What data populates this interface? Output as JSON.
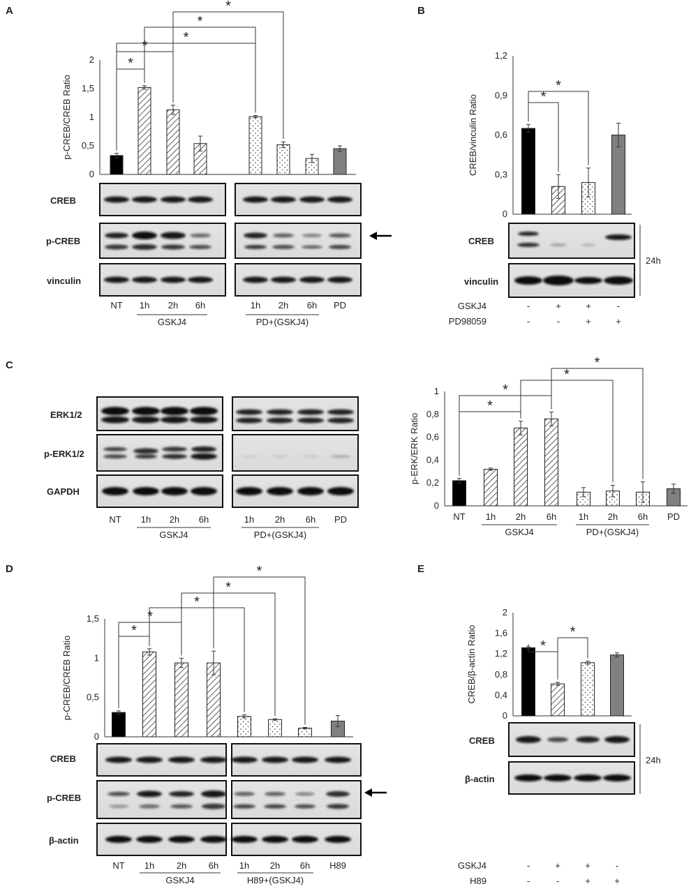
{
  "panel_letters": [
    "A",
    "B",
    "C",
    "D",
    "E"
  ],
  "chart_data": [
    {
      "id": "A",
      "type": "bar",
      "ylabel": "p-CREB/CREB Ratio",
      "ylim": [
        0,
        2
      ],
      "yticks": [
        "0",
        "0,5",
        "1",
        "1,5",
        "2"
      ],
      "categories": [
        "NT",
        "1h",
        "2h",
        "6h",
        "1h",
        "2h",
        "6h",
        "PD"
      ],
      "values": [
        0.33,
        1.52,
        1.13,
        0.54,
        1.01,
        0.52,
        0.28,
        0.45
      ],
      "errors": [
        0.04,
        0.03,
        0.08,
        0.13,
        0.02,
        0.05,
        0.07,
        0.05
      ],
      "groups": [
        "GSKJ4",
        "PD+(GSKJ4)"
      ],
      "blots": [
        "CREB",
        "p-CREB",
        "vinculin"
      ],
      "significance": "*"
    },
    {
      "id": "B",
      "type": "bar",
      "ylabel": "CREB/vinculin Ratio",
      "ylim": [
        0,
        1.2
      ],
      "yticks": [
        "0",
        "0,3",
        "0,6",
        "0,9",
        "1,2"
      ],
      "values": [
        0.65,
        0.21,
        0.24,
        0.6
      ],
      "errors": [
        0.03,
        0.09,
        0.11,
        0.09
      ],
      "blots": [
        "CREB",
        "vinculin"
      ],
      "time": "24h",
      "treatments": [
        {
          "name": "GSKJ4",
          "marks": [
            "-",
            "+",
            "+",
            "-"
          ]
        },
        {
          "name": "PD98059",
          "marks": [
            "-",
            "-",
            "+",
            "+"
          ]
        }
      ],
      "significance": "*"
    },
    {
      "id": "C",
      "type": "bar",
      "ylabel": "p-ERK/ERK Ratio",
      "ylim": [
        0,
        1
      ],
      "yticks": [
        "0",
        "0,2",
        "0,4",
        "0,6",
        "0,8",
        "1"
      ],
      "categories": [
        "NT",
        "1h",
        "2h",
        "6h",
        "1h",
        "2h",
        "6h",
        "PD"
      ],
      "values": [
        0.22,
        0.32,
        0.68,
        0.76,
        0.12,
        0.13,
        0.12,
        0.15
      ],
      "errors": [
        0.02,
        0.01,
        0.06,
        0.06,
        0.04,
        0.05,
        0.09,
        0.04
      ],
      "groups": [
        "GSKJ4",
        "PD+(GSKJ4)"
      ],
      "blots": [
        "ERK1/2",
        "p-ERK1/2",
        "GAPDH"
      ],
      "blot_categories": [
        "NT",
        "1h",
        "2h",
        "6h",
        "1h",
        "2h",
        "6h",
        "PD"
      ],
      "significance": "*"
    },
    {
      "id": "D",
      "type": "bar",
      "ylabel": "p-CREB/CREB Ratio",
      "ylim": [
        0,
        1.5
      ],
      "yticks": [
        "0",
        "0,5",
        "1",
        "1,5"
      ],
      "categories": [
        "NT",
        "1h",
        "2h",
        "6h",
        "1h",
        "2h",
        "6h",
        "H89"
      ],
      "values": [
        0.31,
        1.08,
        0.94,
        0.94,
        0.26,
        0.22,
        0.11,
        0.2
      ],
      "errors": [
        0.02,
        0.04,
        0.06,
        0.15,
        0.02,
        0.01,
        0.01,
        0.07
      ],
      "groups": [
        "GSKJ4",
        "H89+(GSKJ4)"
      ],
      "blots": [
        "CREB",
        "p-CREB",
        "β-actin"
      ],
      "significance": "*"
    },
    {
      "id": "E",
      "type": "bar",
      "ylabel": "CREB/β-actin Ratio",
      "ylim": [
        0,
        2
      ],
      "yticks": [
        "0",
        "0,4",
        "0,8",
        "1,2",
        "1,6",
        "2"
      ],
      "values": [
        1.32,
        0.62,
        1.03,
        1.18
      ],
      "errors": [
        0.02,
        0.03,
        0.03,
        0.04
      ],
      "blots": [
        "CREB",
        "β-actin"
      ],
      "time": "24h",
      "treatments": [
        {
          "name": "GSKJ4",
          "marks": [
            "-",
            "+",
            "+",
            "-"
          ]
        },
        {
          "name": "H89",
          "marks": [
            "-",
            "-",
            "+",
            "+"
          ]
        }
      ],
      "significance": "*"
    }
  ]
}
